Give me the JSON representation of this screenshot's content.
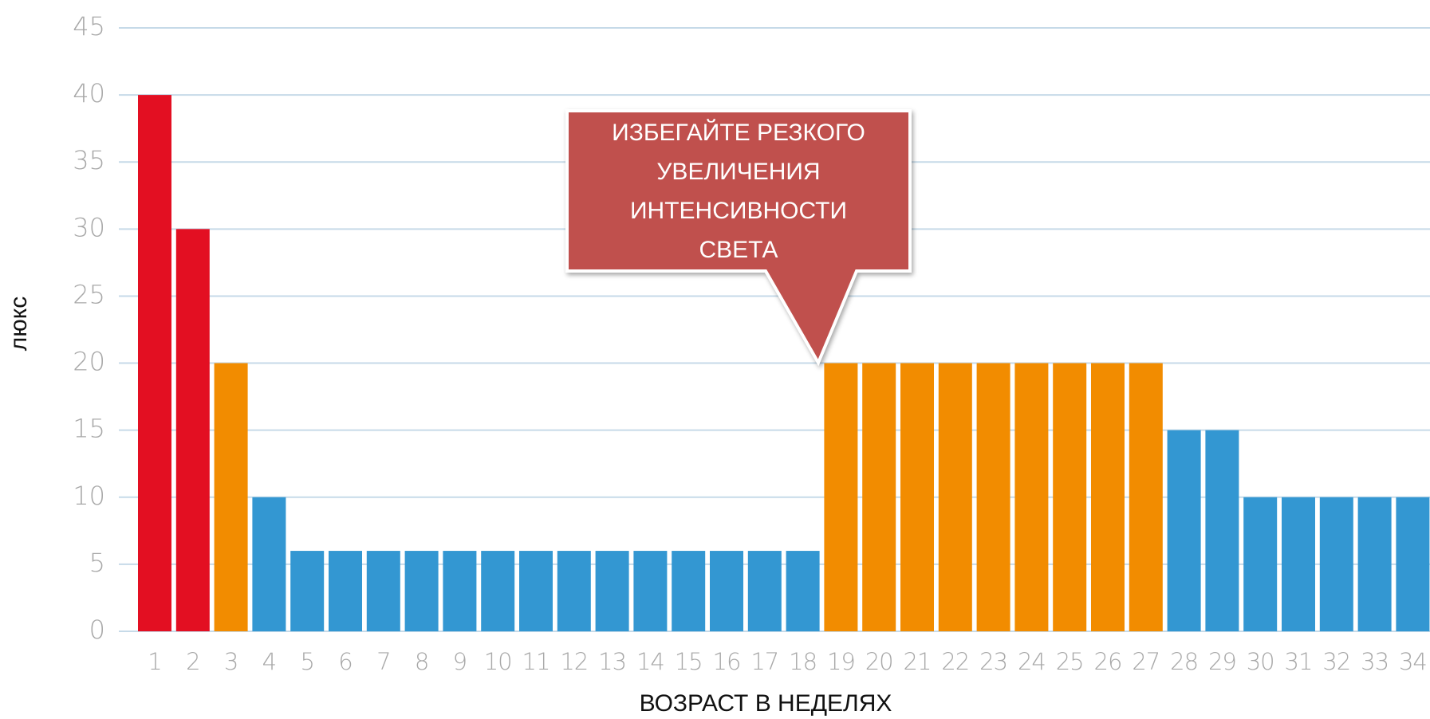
{
  "chart_data": {
    "type": "bar",
    "x_label": "ВОЗРАСТ В НЕДЕЛЯХ",
    "y_label": "люкс",
    "categories": [
      "1",
      "2",
      "3",
      "4",
      "5",
      "6",
      "7",
      "8",
      "9",
      "10",
      "11",
      "12",
      "13",
      "14",
      "15",
      "16",
      "17",
      "18",
      "19",
      "20",
      "21",
      "22",
      "23",
      "24",
      "25",
      "26",
      "27",
      "28",
      "29",
      "30",
      "31",
      "32",
      "33",
      "34"
    ],
    "values": [
      40,
      30,
      20,
      10,
      6,
      6,
      6,
      6,
      6,
      6,
      6,
      6,
      6,
      6,
      6,
      6,
      6,
      6,
      20,
      20,
      20,
      20,
      20,
      20,
      20,
      20,
      20,
      15,
      15,
      10,
      10,
      10,
      10,
      10
    ],
    "colors": [
      "#e30f22",
      "#e30f22",
      "#f28c00",
      "#3397d2",
      "#3397d2",
      "#3397d2",
      "#3397d2",
      "#3397d2",
      "#3397d2",
      "#3397d2",
      "#3397d2",
      "#3397d2",
      "#3397d2",
      "#3397d2",
      "#3397d2",
      "#3397d2",
      "#3397d2",
      "#3397d2",
      "#f28c00",
      "#f28c00",
      "#f28c00",
      "#f28c00",
      "#f28c00",
      "#f28c00",
      "#f28c00",
      "#f28c00",
      "#f28c00",
      "#3397d2",
      "#3397d2",
      "#3397d2",
      "#3397d2",
      "#3397d2",
      "#3397d2",
      "#3397d2"
    ],
    "ylim": [
      0,
      45
    ],
    "yticks": [
      0,
      5,
      10,
      15,
      20,
      25,
      30,
      35,
      40,
      45
    ],
    "grid": true,
    "annotation": {
      "lines": [
        "ИЗБЕГАЙТЕ РЕЗКОГО",
        "УВЕЛИЧЕНИЯ",
        "ИНТЕНСИВНОСТИ",
        "СВЕТА"
      ],
      "color": "#c0504d"
    }
  }
}
